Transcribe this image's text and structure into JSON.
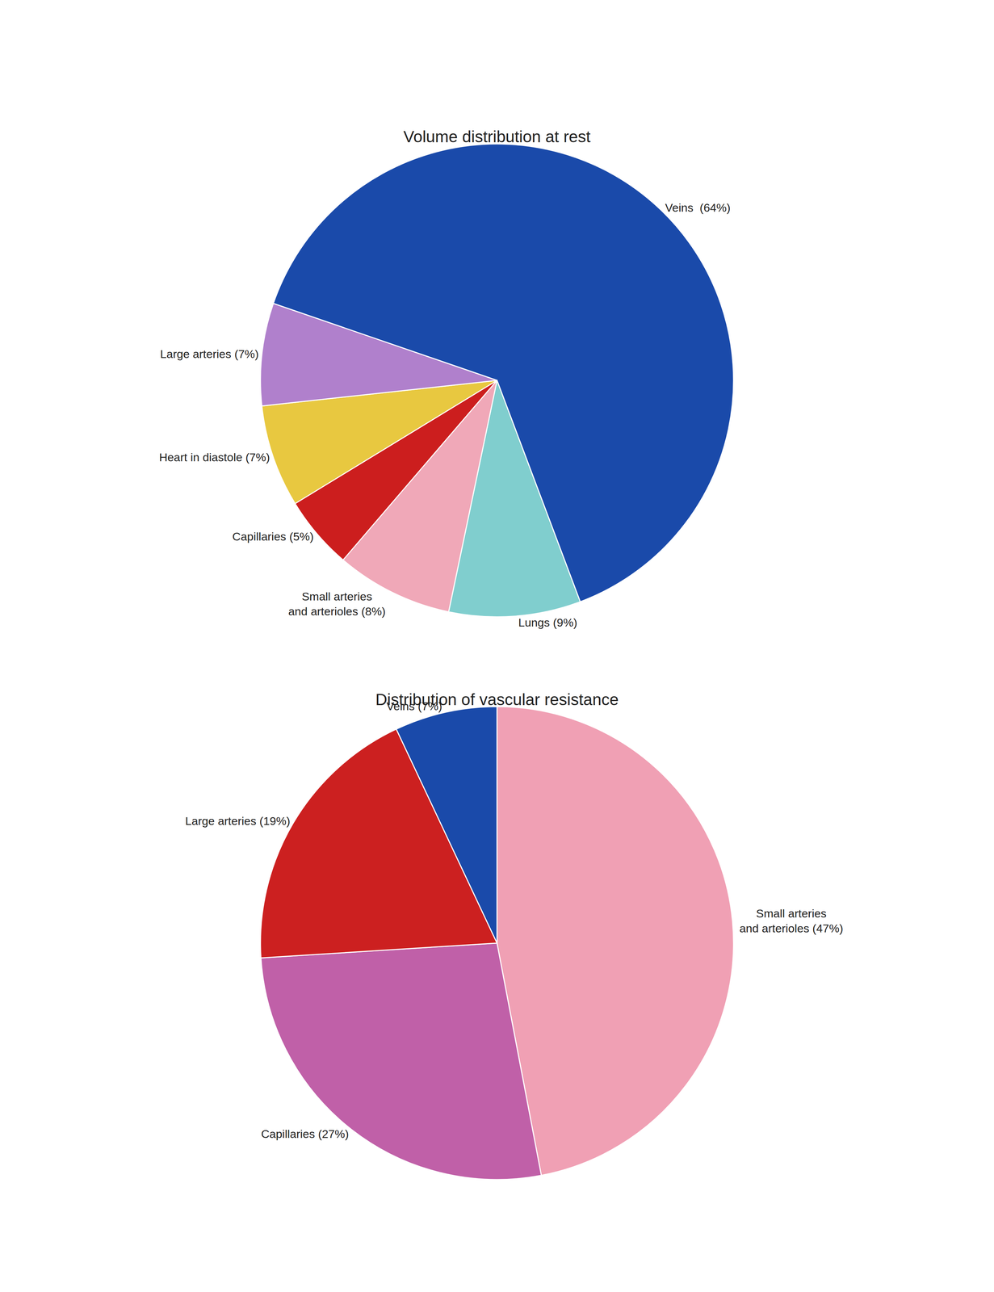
{
  "chart_data": [
    {
      "type": "pie",
      "title": "Volume distribution at rest",
      "categories": [
        "Veins  (64%)",
        "Lungs (9%)",
        "Small arteries\nand arterioles (8%)",
        "Capillaries (5%)",
        "Heart in diastole (7%)",
        "Large arteries (7%)"
      ],
      "values": [
        64,
        9,
        8,
        5,
        7,
        7
      ],
      "colors": [
        "#1a4aaa",
        "#80cece",
        "#f0a8b8",
        "#cc1e1e",
        "#e8c840",
        "#b080cc"
      ]
    },
    {
      "type": "pie",
      "title": "Distribution of vascular resistance",
      "categories": [
        "Small arteries\nand arterioles (47%)",
        "Capillaries (27%)",
        "Large arteries (19%)",
        "Veins (7%)"
      ],
      "values": [
        47,
        27,
        19,
        7
      ],
      "colors": [
        "#f0a0b4",
        "#c060a8",
        "#cc2020",
        "#1a4aaa"
      ]
    }
  ]
}
